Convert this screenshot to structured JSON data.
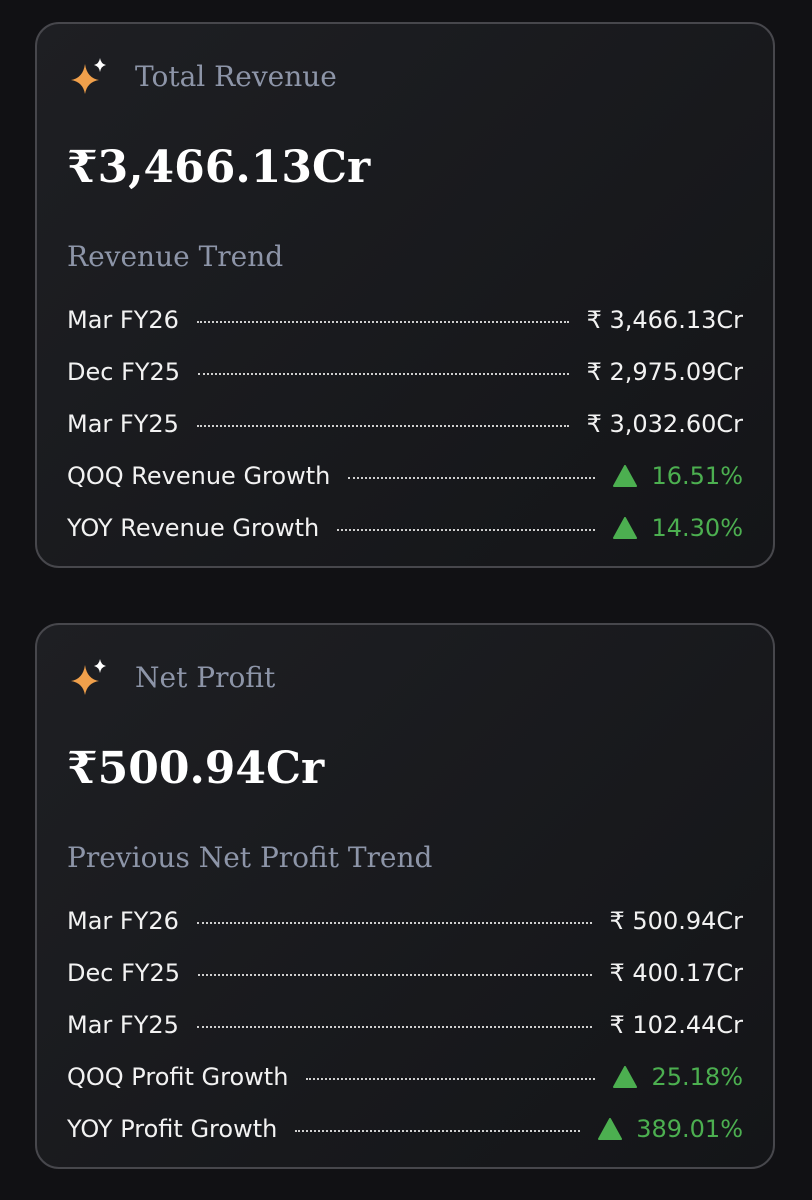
{
  "cards": [
    {
      "title": "Total Revenue",
      "value": "₹3,466.13Cr",
      "trend_title": "Revenue Trend",
      "rows": [
        {
          "label": "Mar FY26",
          "value": "₹ 3,466.13Cr"
        },
        {
          "label": "Dec FY25",
          "value": "₹ 2,975.09Cr"
        },
        {
          "label": "Mar FY25",
          "value": "₹ 3,032.60Cr"
        },
        {
          "label": "QOQ Revenue Growth",
          "value": "16.51%",
          "direction": "up",
          "color": "#4caf50"
        },
        {
          "label": "YOY Revenue Growth",
          "value": "14.30%",
          "direction": "up",
          "color": "#4caf50"
        }
      ]
    },
    {
      "title": "Net Profit",
      "value": "₹500.94Cr",
      "trend_title": "Previous Net Profit Trend",
      "rows": [
        {
          "label": "Mar FY26",
          "value": "₹ 500.94Cr"
        },
        {
          "label": "Dec FY25",
          "value": "₹ 400.17Cr"
        },
        {
          "label": "Mar FY25",
          "value": "₹ 102.44Cr"
        },
        {
          "label": "QOQ Profit Growth",
          "value": "25.18%",
          "direction": "up",
          "color": "#4caf50"
        },
        {
          "label": "YOY Profit Growth",
          "value": "389.01%",
          "direction": "up",
          "color": "#4caf50"
        }
      ]
    }
  ]
}
